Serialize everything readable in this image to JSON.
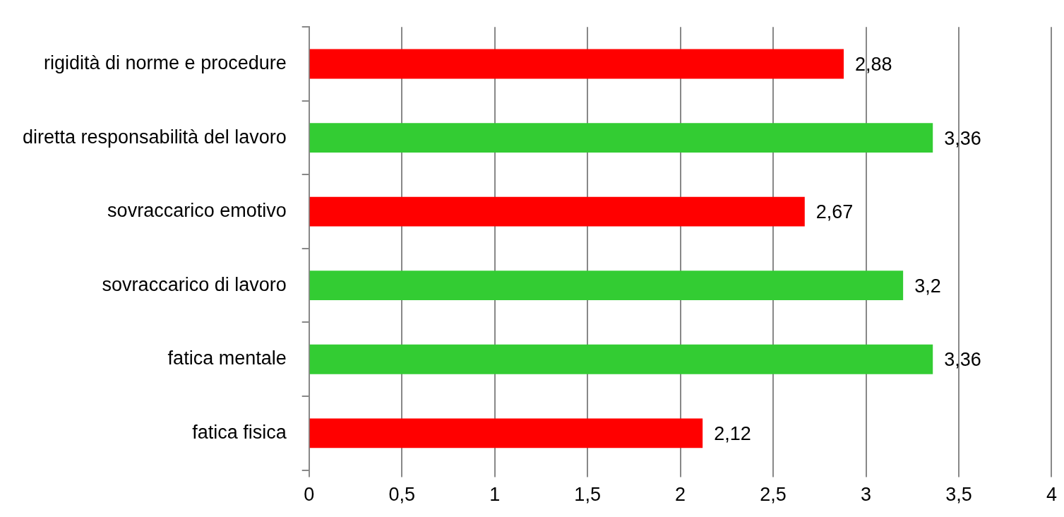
{
  "chart_data": {
    "type": "bar",
    "orientation": "horizontal",
    "categories": [
      "rigidità di norme e procedure",
      "diretta responsabilità del lavoro",
      "sovraccarico emotivo",
      "sovraccarico di lavoro",
      "fatica mentale",
      "fatica fisica"
    ],
    "values": [
      2.88,
      3.36,
      2.67,
      3.2,
      3.36,
      2.12
    ],
    "colors": [
      "#ff0000",
      "#33cc33",
      "#ff0000",
      "#33cc33",
      "#33cc33",
      "#ff0000"
    ],
    "value_labels": [
      "2,88",
      "3,36",
      "2,67",
      "3,2",
      "3,36",
      "2,12"
    ],
    "xlim": [
      0,
      4
    ],
    "xticks": [
      0,
      {
        "value": 0.5,
        "label": "0,5"
      },
      1,
      {
        "value": 1.5,
        "label": "1,5"
      },
      2,
      {
        "value": 2.5,
        "label": "2,5"
      },
      3,
      {
        "value": 3.5,
        "label": "3,5"
      },
      4
    ],
    "grid": "x",
    "legend": false
  }
}
